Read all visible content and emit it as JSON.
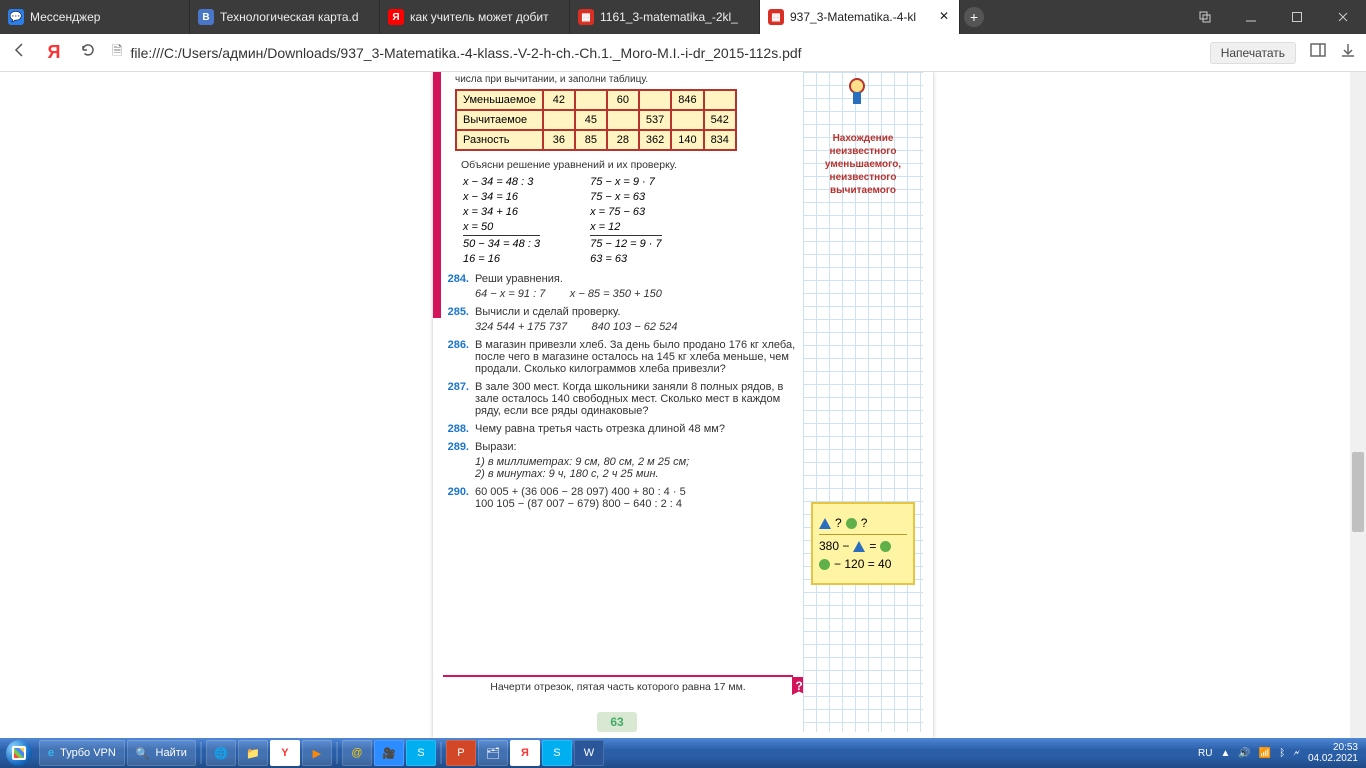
{
  "tabs": [
    {
      "label": "Мессенджер",
      "favicon_bg": "#2b7de9",
      "favicon_txt": "💬"
    },
    {
      "label": "Технологическая карта.d",
      "favicon_bg": "#4a76c9",
      "favicon_txt": "B"
    },
    {
      "label": "как учитель может добит",
      "favicon_bg": "#ff0000",
      "favicon_txt": "Я"
    },
    {
      "label": "1161_3-matematika_-2kl_",
      "favicon_bg": "#d93025",
      "favicon_txt": "▦"
    },
    {
      "label": "937_3-Matematika.-4-kl",
      "favicon_bg": "#d93025",
      "favicon_txt": "▦",
      "active": true
    }
  ],
  "url": "file:///C:/Users/админ/Downloads/937_3-Matematika.-4-klass.-V-2-h-ch.-Ch.1._Moro-M.I.-i-dr_2015-112s.pdf",
  "print_label": "Напечатать",
  "page": {
    "top_text": "числа при вычитании, и заполни таблицу.",
    "table": {
      "rows": [
        {
          "hdr": "Уменьшаемое",
          "cells": [
            "42",
            "",
            "60",
            "",
            "846",
            ""
          ]
        },
        {
          "hdr": "Вычитаемое",
          "cells": [
            "",
            "45",
            "",
            "537",
            "",
            "542"
          ]
        },
        {
          "hdr": "Разность",
          "cells": [
            "36",
            "85",
            "28",
            "362",
            "140",
            "834"
          ]
        }
      ]
    },
    "explain": "Объясни решение уравнений и их проверку.",
    "eq_left": [
      "x − 34 = 48 : 3",
      "x − 34 = 16",
      "x = 34 + 16",
      "x = 50",
      "50 − 34 = 48 : 3",
      "16 = 16"
    ],
    "eq_right": [
      "75 − x = 9 · 7",
      "75 − x = 63",
      "x = 75 − 63",
      "x = 12",
      "75 − 12 = 9 · 7",
      "63 = 63"
    ],
    "tasks": [
      {
        "n": "284.",
        "t": "Реши уравнения.",
        "sub": "64 − x = 91 : 7        x − 85 = 350 + 150"
      },
      {
        "n": "285.",
        "t": "Вычисли и сделай проверку.",
        "sub": "324 544 + 175 737        840 103 − 62 524"
      },
      {
        "n": "286.",
        "t": "В магазин привезли хлеб. За день было продано 176 кг хлеба, после чего в магазине осталось на 145 кг хлеба меньше, чем продали. Сколько килограммов хлеба привезли?"
      },
      {
        "n": "287.",
        "t": "В зале 300 мест. Когда школьники заняли 8 полных рядов, в зале осталось 140 свободных мест. Сколько мест в каждом ряду, если все ряды одинаковые?"
      },
      {
        "n": "288.",
        "t": "Чему равна третья часть отрезка длиной 48 мм?"
      },
      {
        "n": "289.",
        "t": "Вырази:",
        "sub": "1) в миллиметрах: 9 см, 80 см, 2 м 25 см;\n2) в минутах: 9 ч, 180 с, 2 ч 25 мин."
      },
      {
        "n": "290.",
        "t": "60 005 + (36 006 − 28 097)              400 + 80 : 4 · 5\n100 105 − (87 007 − 679)               800 − 640 : 2 : 4"
      }
    ],
    "bottom": "Начерти отрезок, пятая часть которого равна 17 мм.",
    "pagenum": "63",
    "side_title": "Нахождение неизвестного уменьшаемого, неизвестного вычитаемого",
    "sticky": {
      "l2": "380 −",
      "l2b": " = ",
      "l3": " − 120 = 40"
    }
  },
  "taskbar": {
    "search": "Найти",
    "vpn": "Турбо VPN",
    "lang": "RU",
    "time": "20:53",
    "date": "04.02.2021"
  }
}
